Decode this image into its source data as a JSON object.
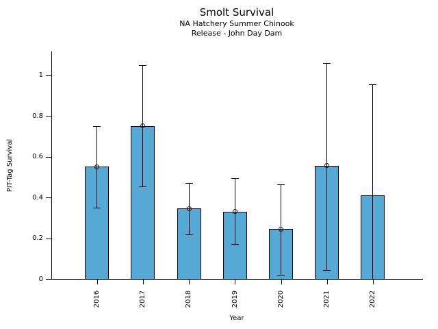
{
  "chart_data": {
    "type": "bar",
    "title": "Smolt Survival",
    "subtitle": [
      "NA Hatchery Summer Chinook",
      "Release - John Day Dam"
    ],
    "xlabel": "Year",
    "ylabel": "PIT-Tag Survival",
    "categories": [
      "2016",
      "2017",
      "2018",
      "2019",
      "2020",
      "2021",
      "2022"
    ],
    "values": [
      0.55,
      0.75,
      0.345,
      0.33,
      0.245,
      0.555,
      0.41
    ],
    "error_low": [
      0.35,
      0.455,
      0.22,
      0.17,
      0.02,
      0.045,
      0.0
    ],
    "error_high": [
      0.75,
      1.05,
      0.47,
      0.495,
      0.465,
      1.06,
      0.955
    ],
    "point_markers": [
      true,
      true,
      true,
      true,
      true,
      true,
      false
    ],
    "lower_caps": [
      true,
      true,
      true,
      true,
      true,
      true,
      false
    ],
    "yticks": [
      0,
      0.2,
      0.4,
      0.6,
      0.8,
      1
    ],
    "ytick_labels": [
      "0",
      "0.2",
      "0.4",
      "0.6",
      "0.8",
      "1"
    ],
    "ylim": [
      0,
      1.116
    ],
    "grid": false,
    "legend": null,
    "bar_color": "#56A9D4",
    "bar_edge_color": "#000000",
    "error_color": "#000000",
    "background": "#FFFFFF"
  }
}
